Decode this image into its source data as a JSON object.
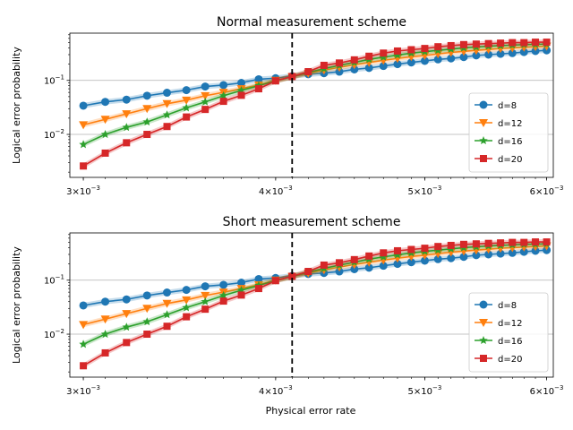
{
  "figure": {
    "xlabel": "Physical error rate",
    "threshold_x": 0.0041,
    "xscale": "log",
    "yscale": "log",
    "xlim": [
      0.00294,
      0.00606
    ],
    "ylim": [
      0.0016,
      0.75
    ],
    "grid": "horizontal-major",
    "legend_position": "lower right",
    "x_ticks": [
      {
        "value": 0.003,
        "base": "3×10",
        "exp": "−3"
      },
      {
        "value": 0.004,
        "base": "4×10",
        "exp": "−3"
      },
      {
        "value": 0.005,
        "base": "5×10",
        "exp": "−3"
      },
      {
        "value": 0.006,
        "base": "6×10",
        "exp": "−3"
      }
    ],
    "y_ticks": [
      {
        "value": 0.1,
        "base": "10",
        "exp": "−1"
      },
      {
        "value": 0.01,
        "base": "10",
        "exp": "−2"
      }
    ]
  },
  "chart_data": [
    {
      "type": "line",
      "title": "Normal measurement scheme",
      "ylabel": "Logical error probability",
      "x": [
        0.003,
        0.0031,
        0.0032,
        0.0033,
        0.0034,
        0.0035,
        0.0036,
        0.0037,
        0.0038,
        0.0039,
        0.004,
        0.0041,
        0.0042,
        0.0043,
        0.0044,
        0.0045,
        0.0046,
        0.0047,
        0.0048,
        0.0049,
        0.005,
        0.0051,
        0.0052,
        0.0053,
        0.0054,
        0.0055,
        0.0056,
        0.0057,
        0.0058,
        0.0059,
        0.006
      ],
      "series": [
        {
          "name": "d=8",
          "color": "#1f77b4",
          "marker": "circle",
          "values": [
            0.034,
            0.04,
            0.044,
            0.052,
            0.059,
            0.066,
            0.077,
            0.082,
            0.09,
            0.105,
            0.11,
            0.12,
            0.13,
            0.136,
            0.145,
            0.16,
            0.17,
            0.185,
            0.2,
            0.215,
            0.23,
            0.245,
            0.255,
            0.27,
            0.29,
            0.3,
            0.31,
            0.32,
            0.335,
            0.35,
            0.36
          ]
        },
        {
          "name": "d=12",
          "color": "#ff7f0e",
          "marker": "triangle-down",
          "values": [
            0.015,
            0.019,
            0.024,
            0.03,
            0.037,
            0.043,
            0.052,
            0.06,
            0.07,
            0.082,
            0.1,
            0.117,
            0.135,
            0.155,
            0.175,
            0.195,
            0.215,
            0.235,
            0.255,
            0.275,
            0.29,
            0.31,
            0.33,
            0.345,
            0.36,
            0.375,
            0.39,
            0.4,
            0.41,
            0.42,
            0.43
          ]
        },
        {
          "name": "d=16",
          "color": "#2ca02c",
          "marker": "star",
          "values": [
            0.0065,
            0.01,
            0.0135,
            0.017,
            0.023,
            0.031,
            0.04,
            0.052,
            0.065,
            0.08,
            0.098,
            0.117,
            0.14,
            0.165,
            0.19,
            0.215,
            0.245,
            0.27,
            0.295,
            0.32,
            0.34,
            0.36,
            0.38,
            0.4,
            0.415,
            0.43,
            0.44,
            0.45,
            0.46,
            0.465,
            0.47
          ]
        },
        {
          "name": "d=20",
          "color": "#d62728",
          "marker": "square",
          "values": [
            0.0026,
            0.0045,
            0.007,
            0.01,
            0.014,
            0.021,
            0.029,
            0.041,
            0.053,
            0.07,
            0.098,
            0.118,
            0.145,
            0.19,
            0.21,
            0.24,
            0.28,
            0.32,
            0.35,
            0.37,
            0.39,
            0.42,
            0.44,
            0.46,
            0.47,
            0.48,
            0.49,
            0.5,
            0.5,
            0.51,
            0.51
          ]
        }
      ]
    },
    {
      "type": "line",
      "title": "Short measurement scheme",
      "ylabel": "Logical error probability",
      "x": [
        0.003,
        0.0031,
        0.0032,
        0.0033,
        0.0034,
        0.0035,
        0.0036,
        0.0037,
        0.0038,
        0.0039,
        0.004,
        0.0041,
        0.0042,
        0.0043,
        0.0044,
        0.0045,
        0.0046,
        0.0047,
        0.0048,
        0.0049,
        0.005,
        0.0051,
        0.0052,
        0.0053,
        0.0054,
        0.0055,
        0.0056,
        0.0057,
        0.0058,
        0.0059,
        0.006
      ],
      "series": [
        {
          "name": "d=8",
          "color": "#1f77b4",
          "marker": "circle",
          "values": [
            0.034,
            0.04,
            0.044,
            0.052,
            0.059,
            0.066,
            0.077,
            0.082,
            0.09,
            0.105,
            0.11,
            0.12,
            0.13,
            0.136,
            0.145,
            0.16,
            0.17,
            0.185,
            0.2,
            0.215,
            0.23,
            0.245,
            0.255,
            0.27,
            0.29,
            0.3,
            0.31,
            0.32,
            0.335,
            0.35,
            0.36
          ]
        },
        {
          "name": "d=12",
          "color": "#ff7f0e",
          "marker": "triangle-down",
          "values": [
            0.015,
            0.019,
            0.024,
            0.03,
            0.037,
            0.043,
            0.052,
            0.06,
            0.07,
            0.082,
            0.1,
            0.117,
            0.135,
            0.155,
            0.175,
            0.195,
            0.215,
            0.235,
            0.255,
            0.275,
            0.29,
            0.31,
            0.33,
            0.345,
            0.36,
            0.375,
            0.39,
            0.4,
            0.41,
            0.42,
            0.43
          ]
        },
        {
          "name": "d=16",
          "color": "#2ca02c",
          "marker": "star",
          "values": [
            0.0065,
            0.01,
            0.0135,
            0.017,
            0.023,
            0.031,
            0.04,
            0.052,
            0.065,
            0.08,
            0.098,
            0.117,
            0.14,
            0.165,
            0.19,
            0.215,
            0.245,
            0.27,
            0.295,
            0.32,
            0.34,
            0.36,
            0.38,
            0.4,
            0.415,
            0.43,
            0.44,
            0.45,
            0.46,
            0.465,
            0.47
          ]
        },
        {
          "name": "d=20",
          "color": "#d62728",
          "marker": "square",
          "values": [
            0.0026,
            0.0045,
            0.007,
            0.01,
            0.014,
            0.021,
            0.029,
            0.041,
            0.053,
            0.07,
            0.098,
            0.118,
            0.145,
            0.19,
            0.21,
            0.24,
            0.28,
            0.32,
            0.35,
            0.37,
            0.39,
            0.42,
            0.44,
            0.46,
            0.47,
            0.48,
            0.49,
            0.5,
            0.5,
            0.51,
            0.51
          ]
        }
      ]
    }
  ]
}
